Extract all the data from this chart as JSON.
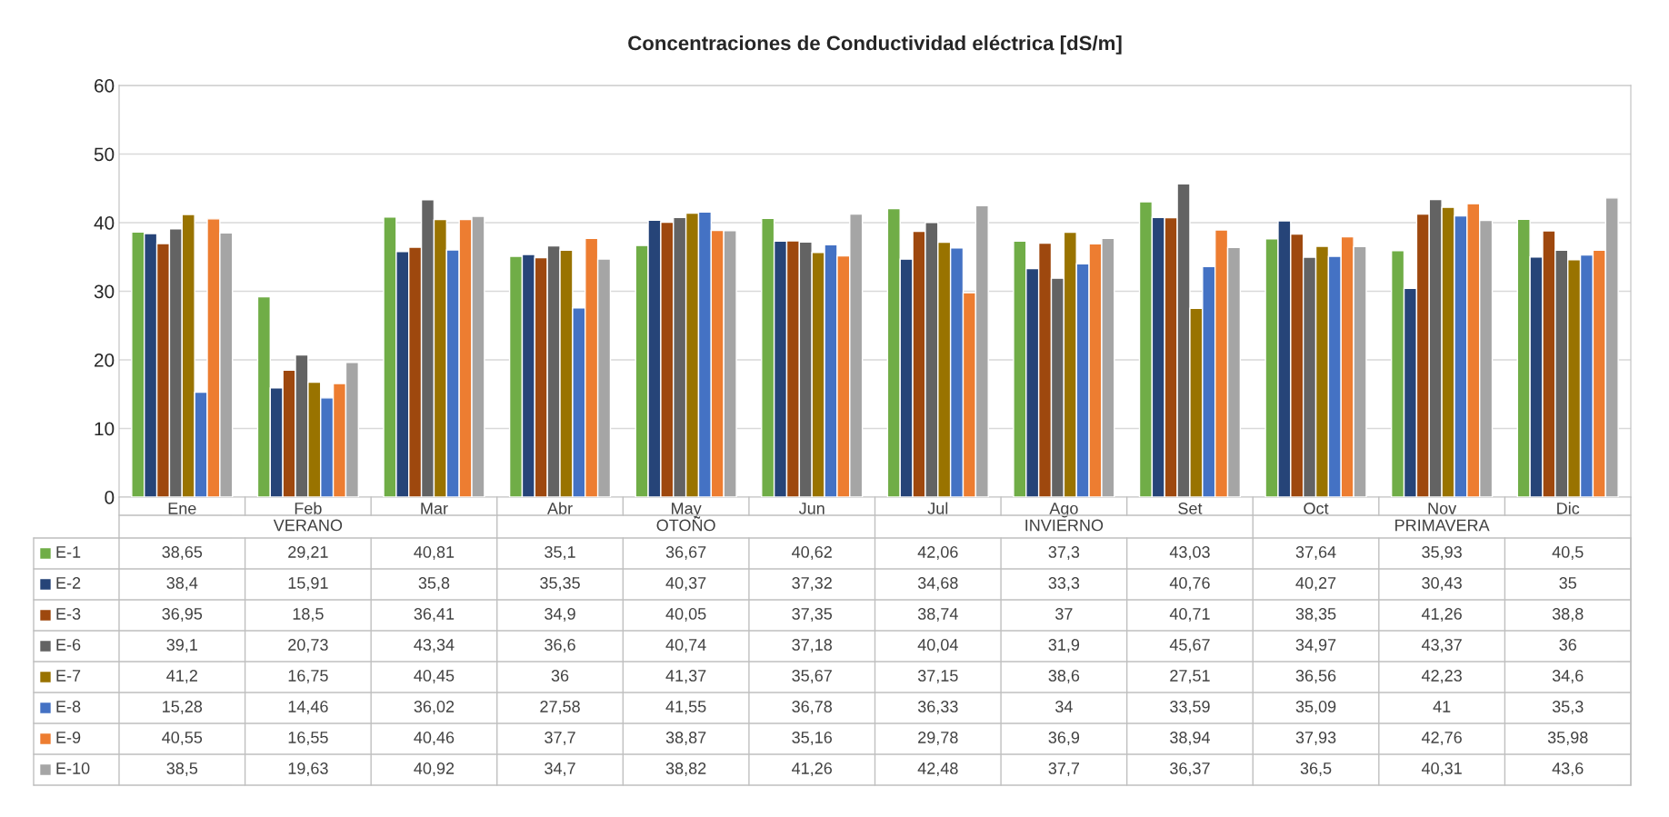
{
  "chart_data": {
    "type": "bar",
    "title": "Concentraciones de Conductividad eléctrica [dS/m]",
    "categories": [
      "Ene",
      "Feb",
      "Mar",
      "Abr",
      "May",
      "Jun",
      "Jul",
      "Ago",
      "Set",
      "Oct",
      "Nov",
      "Dic"
    ],
    "series": [
      {
        "name": "E-1",
        "color": "#70ad47",
        "values": [
          38.65,
          29.21,
          40.81,
          35.1,
          36.67,
          40.62,
          42.06,
          37.3,
          43.03,
          37.64,
          35.93,
          40.5
        ],
        "value_labels": [
          "38,65",
          "29,21",
          "40,81",
          "35,1",
          "36,67",
          "40,62",
          "42,06",
          "37,3",
          "43,03",
          "37,64",
          "35,93",
          "40,5"
        ]
      },
      {
        "name": "E-2",
        "color": "#264478",
        "values": [
          38.4,
          15.91,
          35.8,
          35.35,
          40.37,
          37.32,
          34.68,
          33.3,
          40.76,
          40.27,
          30.43,
          35
        ],
        "value_labels": [
          "38,4",
          "15,91",
          "35,8",
          "35,35",
          "40,37",
          "37,32",
          "34,68",
          "33,3",
          "40,76",
          "40,27",
          "30,43",
          "35"
        ]
      },
      {
        "name": "E-3",
        "color": "#9e480e",
        "values": [
          36.95,
          18.5,
          36.41,
          34.9,
          40.05,
          37.35,
          38.74,
          37,
          40.71,
          38.35,
          41.26,
          38.8
        ],
        "value_labels": [
          "36,95",
          "18,5",
          "36,41",
          "34,9",
          "40,05",
          "37,35",
          "38,74",
          "37",
          "40,71",
          "38,35",
          "41,26",
          "38,8"
        ]
      },
      {
        "name": "E-6",
        "color": "#636363",
        "values": [
          39.1,
          20.73,
          43.34,
          36.6,
          40.74,
          37.18,
          40.04,
          31.9,
          45.67,
          34.97,
          43.37,
          36
        ],
        "value_labels": [
          "39,1",
          "20,73",
          "43,34",
          "36,6",
          "40,74",
          "37,18",
          "40,04",
          "31,9",
          "45,67",
          "34,97",
          "43,37",
          "36"
        ]
      },
      {
        "name": "E-7",
        "color": "#997300",
        "values": [
          41.2,
          16.75,
          40.45,
          36,
          41.37,
          35.67,
          37.15,
          38.6,
          27.51,
          36.56,
          42.23,
          34.6
        ],
        "value_labels": [
          "41,2",
          "16,75",
          "40,45",
          "36",
          "41,37",
          "35,67",
          "37,15",
          "38,6",
          "27,51",
          "36,56",
          "42,23",
          "34,6"
        ]
      },
      {
        "name": "E-8",
        "color": "#4472c4",
        "values": [
          15.28,
          14.46,
          36.02,
          27.58,
          41.55,
          36.78,
          36.33,
          34,
          33.59,
          35.09,
          41,
          35.3
        ],
        "value_labels": [
          "15,28",
          "14,46",
          "36,02",
          "27,58",
          "41,55",
          "36,78",
          "36,33",
          "34",
          "33,59",
          "35,09",
          "41",
          "35,3"
        ]
      },
      {
        "name": "E-9",
        "color": "#ed7d31",
        "values": [
          40.55,
          16.55,
          40.46,
          37.7,
          38.87,
          35.16,
          29.78,
          36.9,
          38.94,
          37.93,
          42.76,
          35.98
        ],
        "value_labels": [
          "40,55",
          "16,55",
          "40,46",
          "37,7",
          "38,87",
          "35,16",
          "29,78",
          "36,9",
          "38,94",
          "37,93",
          "42,76",
          "35,98"
        ]
      },
      {
        "name": "E-10",
        "color": "#a5a5a5",
        "values": [
          38.5,
          19.63,
          40.92,
          34.7,
          38.82,
          41.26,
          42.48,
          37.7,
          36.37,
          36.5,
          40.31,
          43.6
        ],
        "value_labels": [
          "38,5",
          "19,63",
          "40,92",
          "34,7",
          "38,82",
          "41,26",
          "42,48",
          "37,7",
          "36,37",
          "36,5",
          "40,31",
          "43,6"
        ]
      }
    ],
    "annotations": [
      "VERANO",
      "OTOÑO",
      "INVIERNO",
      "PRIMAVERA"
    ],
    "ylim": [
      0,
      60
    ],
    "yticks": [
      0,
      10,
      20,
      30,
      40,
      50,
      60
    ],
    "grid": "y",
    "legend": "bottom"
  }
}
